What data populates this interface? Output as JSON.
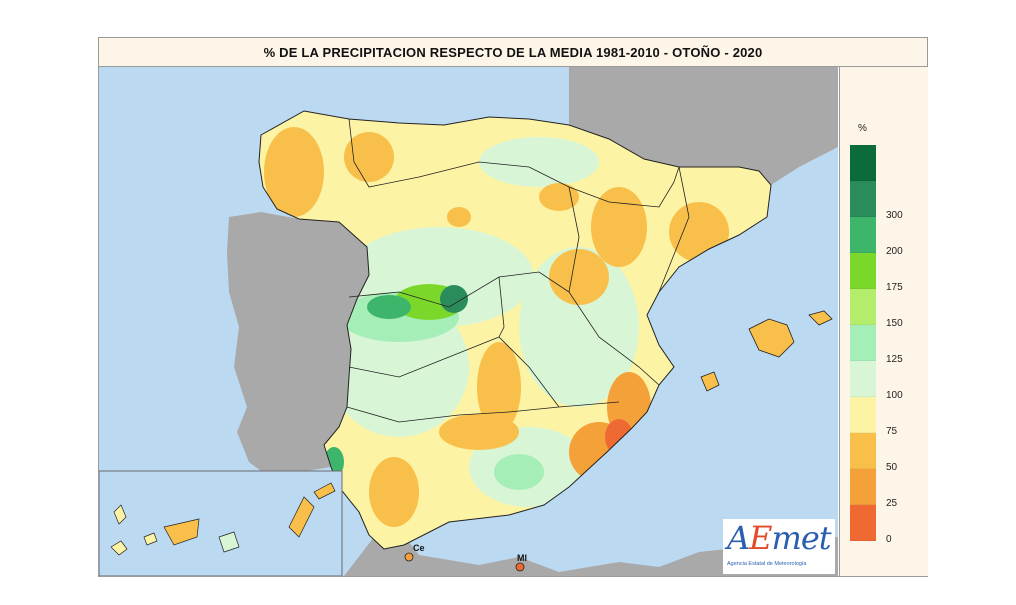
{
  "title": "% DE LA PRECIPITACION RESPECTO DE LA MEDIA 1981-2010 - OTOÑO - 2020",
  "legend": {
    "unit": "%",
    "classes": [
      {
        "label": "",
        "color": "#0b6b3a"
      },
      {
        "label": "300",
        "color": "#2a8c5a"
      },
      {
        "label": "200",
        "color": "#3db56a"
      },
      {
        "label": "175",
        "color": "#7bd82a"
      },
      {
        "label": "150",
        "color": "#b4ec6b"
      },
      {
        "label": "125",
        "color": "#a6eeb8"
      },
      {
        "label": "100",
        "color": "#d8f6d6"
      },
      {
        "label": "75",
        "color": "#fdf3a4"
      },
      {
        "label": "50",
        "color": "#f8c04a"
      },
      {
        "label": "25",
        "color": "#f4a13a"
      },
      {
        "label": "0",
        "color": "#ee6a32"
      }
    ]
  },
  "colors": {
    "sea": "#bcd9f2",
    "other_land": "#a9a9a9",
    "frame_header": "#fdf5e7"
  },
  "places": {
    "ceuta": "Ce",
    "melilla": "Ml"
  },
  "logo": {
    "text_a": "A",
    "text_e": "E",
    "text_rest": "met",
    "tagline": "Agencia Estatal de Meteorología"
  }
}
